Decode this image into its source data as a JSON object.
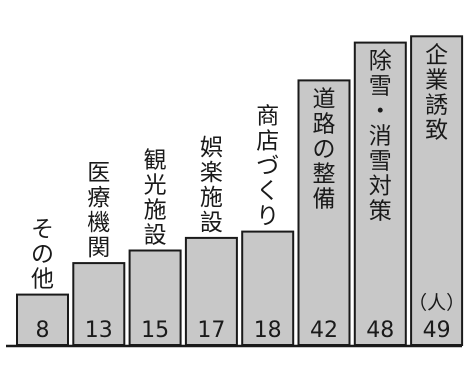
{
  "chart_data": {
    "type": "bar",
    "unit": "（人）",
    "categories": [
      "その他",
      "医療機関",
      "観光施設",
      "娯楽施設",
      "商店づくり",
      "道路の整備",
      "除雪・消雪対策",
      "企業誘致"
    ],
    "values": [
      8,
      13,
      15,
      17,
      18,
      42,
      48,
      49
    ],
    "value_labels": [
      "8",
      "13",
      "15",
      "17",
      "18",
      "42",
      "48",
      "49"
    ],
    "ylim": [
      0,
      50
    ],
    "grid": false,
    "legend": "none"
  },
  "colors": {
    "bar_fill": "#c8c8c8",
    "bar_stroke": "#1a1a1a",
    "text": "#1a1a1a",
    "background": "#ffffff"
  }
}
